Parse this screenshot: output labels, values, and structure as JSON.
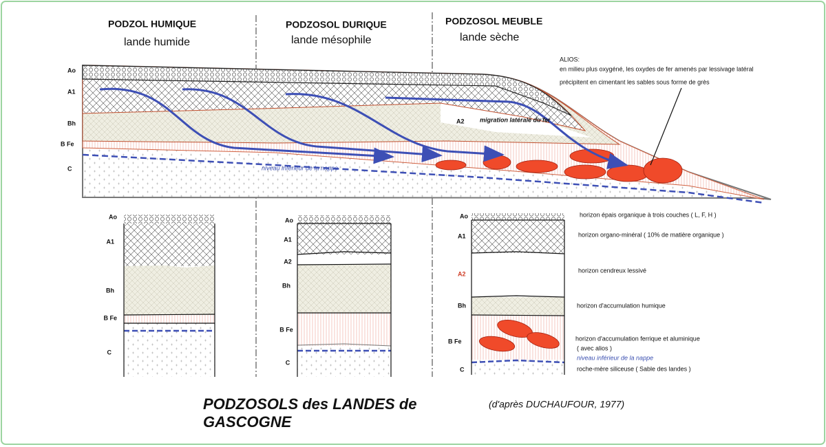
{
  "columns": [
    {
      "title": "PODZOL HUMIQUE",
      "subtitle": "lande humide"
    },
    {
      "title": "PODZOSOL DURIQUE",
      "subtitle": "lande mésophile"
    },
    {
      "title": "PODZOSOL MEUBLE",
      "subtitle": "lande sèche"
    }
  ],
  "cross_section": {
    "horizons": [
      "Ao",
      "A1",
      "Bh",
      "B Fe",
      "C"
    ],
    "a2": "A2",
    "migration": "migration latérale du fer",
    "water_table": "niveau inférieur de la nappe"
  },
  "alios": {
    "title": "ALIOS:",
    "lines": [
      "en milieu plus oxygéné, les oxydes de fer amenés par lessivage latéral",
      "précipitent en cimentant les sables sous forme de grès"
    ]
  },
  "profiles": [
    {
      "horizons": [
        "Ao",
        "A1",
        "Bh",
        "B Fe",
        "C"
      ]
    },
    {
      "horizons": [
        "Ao",
        "A1",
        "A2",
        "Bh",
        "B Fe",
        "C"
      ]
    },
    {
      "horizons": [
        "Ao",
        "A1",
        "A2",
        "Bh",
        "B Fe",
        "C"
      ],
      "descriptions": [
        "horizon épais organique à trois couches ( L, F, H )",
        "horizon organo-minéral ( 10% de matière organique )",
        "horizon cendreux lessivé",
        "horizon d'accumulation humique",
        "horizon d'accumulation ferrique et aluminique",
        "( avec alios )",
        "niveau inférieur de la nappe",
        "roche-mère siliceuse ( Sable des landes )"
      ]
    }
  ],
  "title_lines": [
    "PODZOSOLS des LANDES de",
    "GASCOGNE"
  ],
  "source": "(d'après DUCHAUFOUR, 1977)"
}
